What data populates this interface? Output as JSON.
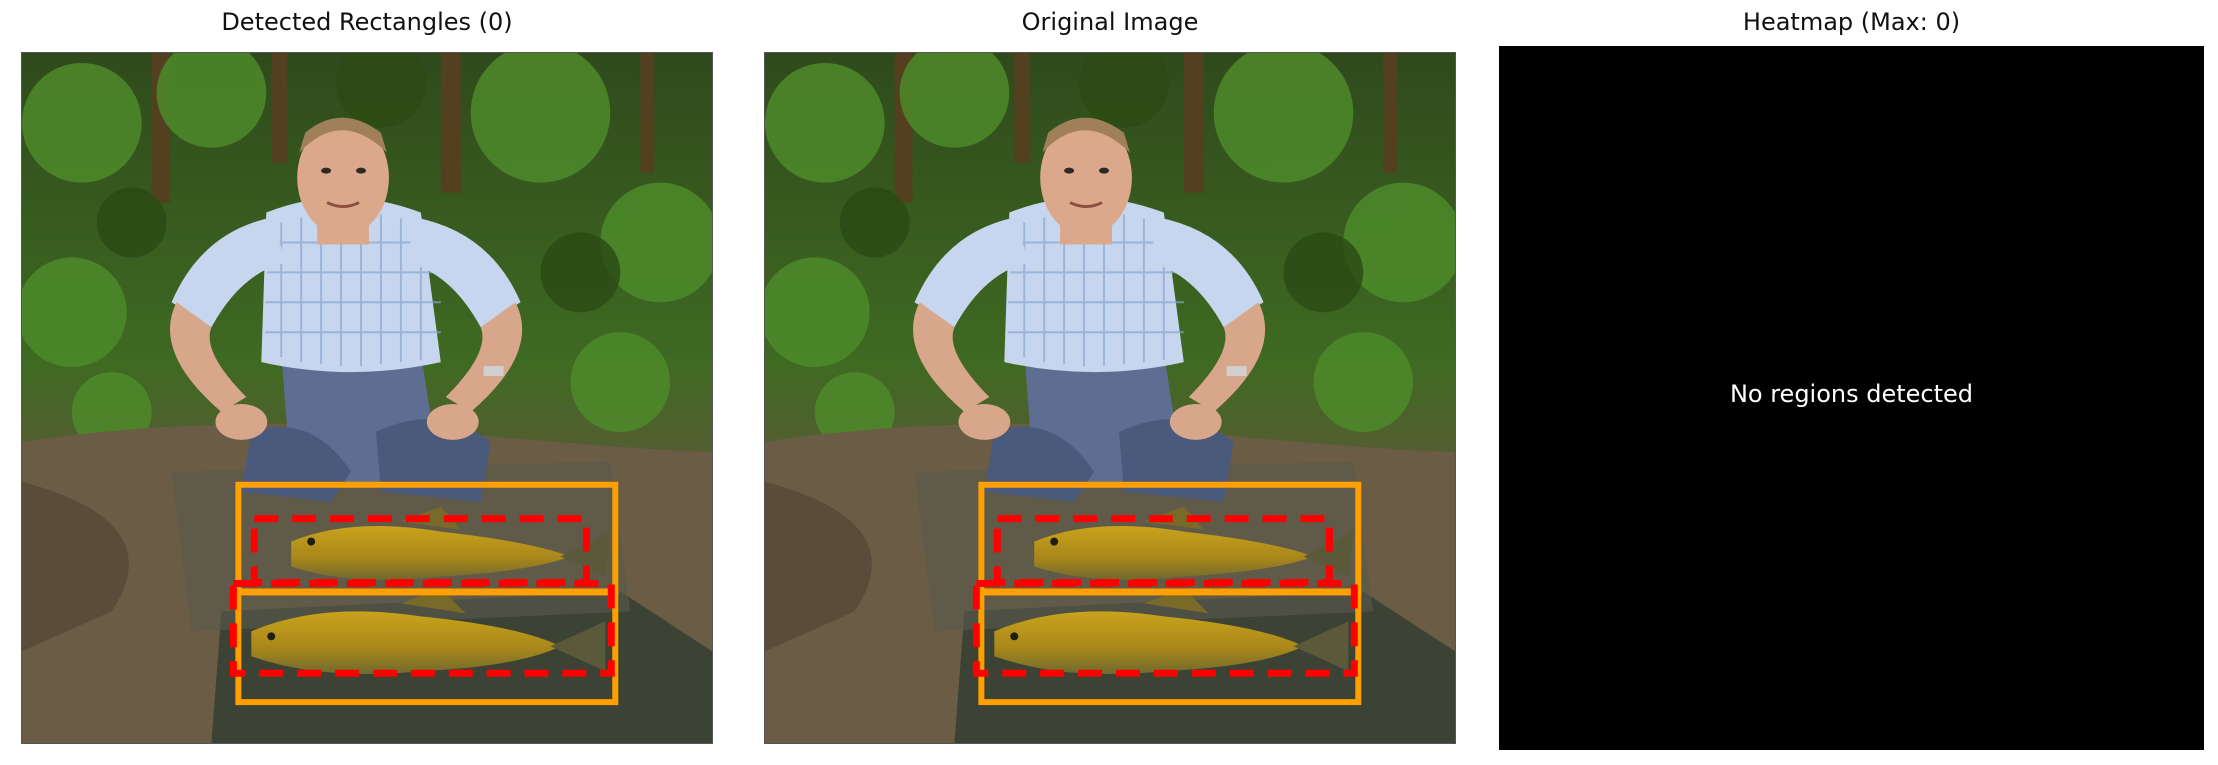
{
  "panels": {
    "detected": {
      "title": "Detected Rectangles (0)"
    },
    "original": {
      "title": "Original Image"
    },
    "heatmap": {
      "title": "Heatmap (Max: 0)",
      "message": "No regions detected",
      "max": 0
    }
  },
  "colors": {
    "solid_box": "#ffa000",
    "dashed_box": "#ff0000",
    "heatmap_bg": "#000000"
  },
  "icons": {
    "photo": "angler-with-two-fish-photo"
  }
}
